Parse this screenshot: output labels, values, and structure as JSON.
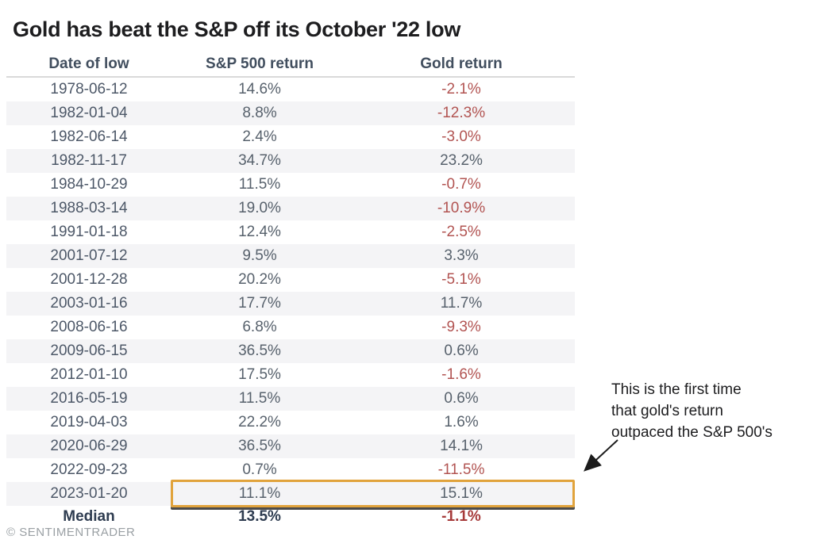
{
  "title": "Gold has beat the S&P off its October '22 low",
  "chart_data": {
    "type": "table",
    "title": "Gold has beat the S&P off its October '22 low",
    "columns": [
      "Date of low",
      "S&P 500 return",
      "Gold return"
    ],
    "rows": [
      [
        "1978-06-12",
        "14.6%",
        "-2.1%"
      ],
      [
        "1982-01-04",
        "8.8%",
        "-12.3%"
      ],
      [
        "1982-06-14",
        "2.4%",
        "-3.0%"
      ],
      [
        "1982-11-17",
        "34.7%",
        "23.2%"
      ],
      [
        "1984-10-29",
        "11.5%",
        "-0.7%"
      ],
      [
        "1988-03-14",
        "19.0%",
        "-10.9%"
      ],
      [
        "1991-01-18",
        "12.4%",
        "-2.5%"
      ],
      [
        "2001-07-12",
        "9.5%",
        "3.3%"
      ],
      [
        "2001-12-28",
        "20.2%",
        "-5.1%"
      ],
      [
        "2003-01-16",
        "17.7%",
        "11.7%"
      ],
      [
        "2008-06-16",
        "6.8%",
        "-9.3%"
      ],
      [
        "2009-06-15",
        "36.5%",
        "0.6%"
      ],
      [
        "2012-01-10",
        "17.5%",
        "-1.6%"
      ],
      [
        "2016-05-19",
        "11.5%",
        "0.6%"
      ],
      [
        "2019-04-03",
        "22.2%",
        "1.6%"
      ],
      [
        "2020-06-29",
        "36.5%",
        "14.1%"
      ],
      [
        "2022-09-23",
        "0.7%",
        "-11.5%"
      ],
      [
        "2023-01-20",
        "11.1%",
        "15.1%"
      ]
    ],
    "median_row": [
      "Median",
      "13.5%",
      "-1.1%"
    ],
    "highlighted_row_index": 17,
    "legend_position": "none",
    "grid": "row-stripes"
  },
  "annotation": {
    "lines": [
      "This is the first time",
      "that gold's return",
      "outpaced the S&P 500's"
    ]
  },
  "footer": {
    "credit": "© SENTIMENTRADER"
  },
  "colors": {
    "title_text": "#1d1d1f",
    "header_text": "#414e5e",
    "header_rule": "#d9d9d9",
    "date_text": "#4d5868",
    "value_text": "#57616c",
    "negative": "#b25452",
    "median_text": "#2e3c50",
    "median_negative": "#a63a3a",
    "stripe": "#f4f4f6",
    "highlight_border": "#e1a33c",
    "highlight_underline": "#4b4b4b",
    "annotation_text": "#1d1d1f",
    "footer_text": "#9aa0a4",
    "arrow": "#1c1c1c"
  }
}
